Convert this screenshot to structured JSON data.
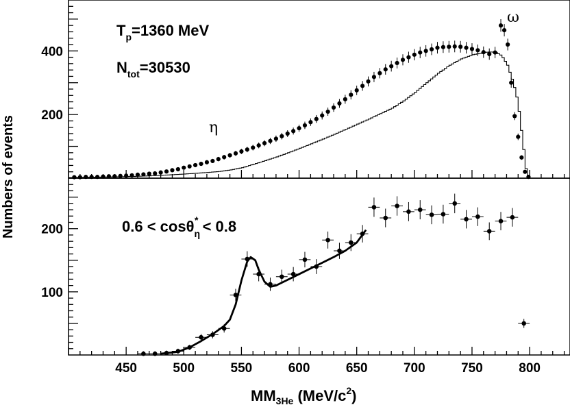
{
  "chart_data": [
    {
      "type": "scatter",
      "panel": "top",
      "xlim": [
        400,
        835
      ],
      "ylim": [
        0,
        560
      ],
      "yticks": [
        200,
        400
      ],
      "annotations": {
        "tp_main": "T",
        "tp_sub": "p",
        "tp_rest": "=1360 MeV",
        "ntot_main": "N",
        "ntot_sub": "tot",
        "ntot_rest": "=30530",
        "eta": "η",
        "omega": "ω"
      },
      "series": [
        {
          "name": "data",
          "points": [
            [
              405,
              3
            ],
            [
              410,
              3
            ],
            [
              415,
              4
            ],
            [
              420,
              4
            ],
            [
              425,
              4
            ],
            [
              430,
              5
            ],
            [
              435,
              6
            ],
            [
              440,
              6
            ],
            [
              445,
              7
            ],
            [
              450,
              8
            ],
            [
              455,
              9
            ],
            [
              460,
              11
            ],
            [
              465,
              12
            ],
            [
              470,
              14
            ],
            [
              475,
              15
            ],
            [
              480,
              18
            ],
            [
              485,
              21
            ],
            [
              490,
              25
            ],
            [
              495,
              28
            ],
            [
              500,
              33
            ],
            [
              505,
              37
            ],
            [
              510,
              41
            ],
            [
              515,
              45
            ],
            [
              520,
              50
            ],
            [
              525,
              54
            ],
            [
              530,
              60
            ],
            [
              535,
              66
            ],
            [
              540,
              72
            ],
            [
              545,
              78
            ],
            [
              550,
              84
            ],
            [
              555,
              90
            ],
            [
              560,
              96
            ],
            [
              565,
              103
            ],
            [
              570,
              110
            ],
            [
              575,
              117
            ],
            [
              580,
              124
            ],
            [
              585,
              132
            ],
            [
              590,
              140
            ],
            [
              595,
              148
            ],
            [
              600,
              157
            ],
            [
              605,
              166
            ],
            [
              610,
              176
            ],
            [
              615,
              186
            ],
            [
              620,
              197
            ],
            [
              625,
              209
            ],
            [
              630,
              222
            ],
            [
              635,
              235
            ],
            [
              640,
              248
            ],
            [
              645,
              262
            ],
            [
              650,
              276
            ],
            [
              655,
              290
            ],
            [
              660,
              304
            ],
            [
              665,
              318
            ],
            [
              670,
              330
            ],
            [
              675,
              342
            ],
            [
              680,
              352
            ],
            [
              685,
              362
            ],
            [
              690,
              372
            ],
            [
              695,
              380
            ],
            [
              700,
              388
            ],
            [
              705,
              395
            ],
            [
              710,
              400
            ],
            [
              715,
              405
            ],
            [
              720,
              410
            ],
            [
              725,
              412
            ],
            [
              730,
              413
            ],
            [
              735,
              414
            ],
            [
              740,
              413
            ],
            [
              745,
              410
            ],
            [
              750,
              406
            ],
            [
              755,
              402
            ],
            [
              760,
              396
            ],
            [
              765,
              390
            ],
            [
              770,
              395
            ],
            [
              775,
              480
            ],
            [
              778,
              465
            ],
            [
              781,
              420
            ],
            [
              784,
              300
            ],
            [
              787,
              195
            ],
            [
              790,
              130
            ],
            [
              793,
              65
            ],
            [
              796,
              20
            ],
            [
              799,
              4
            ]
          ]
        },
        {
          "name": "simulation",
          "points": [
            [
              400,
              2
            ],
            [
              420,
              3
            ],
            [
              440,
              4
            ],
            [
              460,
              6
            ],
            [
              480,
              9
            ],
            [
              500,
              13
            ],
            [
              520,
              18
            ],
            [
              530,
              21
            ],
            [
              540,
              26
            ],
            [
              550,
              33
            ],
            [
              560,
              44
            ],
            [
              570,
              55
            ],
            [
              580,
              67
            ],
            [
              590,
              80
            ],
            [
              600,
              94
            ],
            [
              610,
              108
            ],
            [
              620,
              123
            ],
            [
              630,
              138
            ],
            [
              640,
              154
            ],
            [
              650,
              170
            ],
            [
              660,
              186
            ],
            [
              670,
              203
            ],
            [
              680,
              220
            ],
            [
              690,
              243
            ],
            [
              700,
              270
            ],
            [
              710,
              300
            ],
            [
              720,
              330
            ],
            [
              730,
              355
            ],
            [
              740,
              375
            ],
            [
              750,
              388
            ],
            [
              760,
              395
            ],
            [
              765,
              397
            ],
            [
              770,
              395
            ],
            [
              775,
              385
            ],
            [
              780,
              355
            ],
            [
              785,
              300
            ],
            [
              788,
              255
            ],
            [
              790,
              210
            ],
            [
              792,
              150
            ],
            [
              794,
              90
            ],
            [
              796,
              30
            ],
            [
              798,
              2
            ]
          ]
        }
      ]
    },
    {
      "type": "scatter",
      "panel": "bottom",
      "xlim": [
        400,
        835
      ],
      "ylim": [
        0,
        280
      ],
      "xticks": [
        450,
        500,
        550,
        600,
        650,
        700,
        750,
        800
      ],
      "yticks": [
        100,
        200
      ],
      "xlabel_main": "MM",
      "xlabel_sub": "3He",
      "xlabel_rest": " (MeV/c",
      "xlabel_sup": "2",
      "xlabel_close": ")",
      "ylabel": "Numbers of events",
      "annotations": {
        "cos_left": "0.6 < cosθ",
        "cos_sub": "η",
        "cos_sup": "*",
        "cos_right": " < 0.8"
      },
      "series": [
        {
          "name": "data",
          "points": [
            [
              465,
              2
            ],
            [
              475,
              2
            ],
            [
              485,
              3
            ],
            [
              495,
              6
            ],
            [
              505,
              12
            ],
            [
              515,
              28
            ],
            [
              525,
              32
            ],
            [
              535,
              42
            ],
            [
              545,
              95
            ],
            [
              555,
              152
            ],
            [
              565,
              128
            ],
            [
              575,
              112
            ],
            [
              585,
              124
            ],
            [
              595,
              128
            ],
            [
              605,
              151
            ],
            [
              615,
              140
            ],
            [
              625,
              182
            ],
            [
              635,
              165
            ],
            [
              645,
              178
            ],
            [
              655,
              192
            ],
            [
              665,
              234
            ],
            [
              675,
              217
            ],
            [
              685,
              236
            ],
            [
              695,
              227
            ],
            [
              705,
              230
            ],
            [
              715,
              222
            ],
            [
              725,
              223
            ],
            [
              735,
              240
            ],
            [
              745,
              215
            ],
            [
              755,
              219
            ],
            [
              765,
              196
            ],
            [
              775,
              212
            ],
            [
              785,
              218
            ],
            [
              795,
              50
            ]
          ]
        },
        {
          "name": "fit",
          "points": [
            [
              480,
              2
            ],
            [
              495,
              5
            ],
            [
              505,
              12
            ],
            [
              515,
              22
            ],
            [
              525,
              33
            ],
            [
              535,
              46
            ],
            [
              540,
              56
            ],
            [
              545,
              80
            ],
            [
              550,
              118
            ],
            [
              555,
              148
            ],
            [
              558,
              155
            ],
            [
              562,
              150
            ],
            [
              565,
              135
            ],
            [
              570,
              116
            ],
            [
              575,
              108
            ],
            [
              580,
              110
            ],
            [
              590,
              119
            ],
            [
              600,
              128
            ],
            [
              610,
              137
            ],
            [
              620,
              146
            ],
            [
              630,
              155
            ],
            [
              640,
              165
            ],
            [
              650,
              178
            ],
            [
              658,
              198
            ]
          ]
        }
      ]
    }
  ]
}
